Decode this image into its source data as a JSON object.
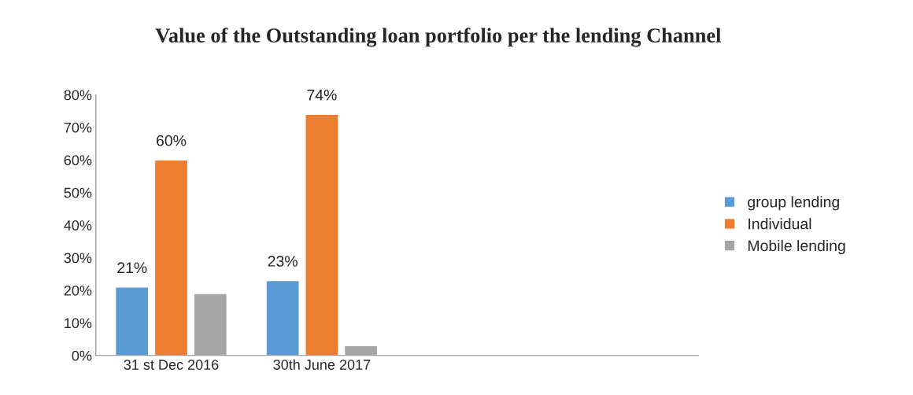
{
  "chart_data": {
    "type": "bar",
    "title": "Value of the Outstanding loan portfolio per the lending Channel",
    "categories": [
      "31 st Dec 2016",
      "30th June 2017"
    ],
    "series": [
      {
        "name": "group lending",
        "color": "#5b9bd5",
        "values": [
          21,
          23
        ],
        "value_labels": [
          "21%",
          "23%"
        ]
      },
      {
        "name": "Individual",
        "color": "#ed7d31",
        "values": [
          60,
          74
        ],
        "value_labels": [
          "60%",
          "74%"
        ]
      },
      {
        "name": "Mobile lending",
        "color": "#a5a5a5",
        "values": [
          19,
          3
        ],
        "value_labels": [
          null,
          null
        ]
      }
    ],
    "ylim": [
      0,
      80
    ],
    "yticks": [
      {
        "value": 0,
        "label": "0%"
      },
      {
        "value": 10,
        "label": "10%"
      },
      {
        "value": 20,
        "label": "20%"
      },
      {
        "value": 30,
        "label": "30%"
      },
      {
        "value": 40,
        "label": "40%"
      },
      {
        "value": 50,
        "label": "50%"
      },
      {
        "value": 60,
        "label": "60%"
      },
      {
        "value": 70,
        "label": "70%"
      },
      {
        "value": 80,
        "label": "80%"
      }
    ],
    "grid": false,
    "legend": "right"
  }
}
